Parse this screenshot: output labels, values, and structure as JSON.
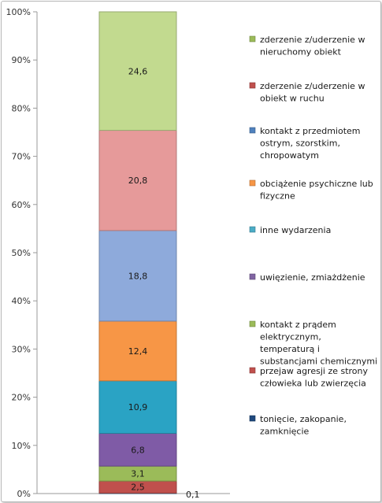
{
  "chart_data": {
    "type": "bar",
    "stacked": true,
    "percent_axis": true,
    "ylim": [
      0,
      100
    ],
    "yticks": [
      "0%",
      "10%",
      "20%",
      "30%",
      "40%",
      "50%",
      "60%",
      "70%",
      "80%",
      "90%",
      "100%"
    ],
    "grid": false,
    "legend_position": "right",
    "series": [
      {
        "name": "tonięcie, zakopanie, zamknięcie",
        "value": 0.1,
        "label": "0,1",
        "color": "#1f5f8b"
      },
      {
        "name": "przejaw agresji ze strony człowieka lub zwierzęcia",
        "value": 2.5,
        "label": "2,5",
        "color": "#c0504d"
      },
      {
        "name": "kontakt z prądem elektrycznym, temperaturą i substancjami chemicznymi",
        "value": 3.1,
        "label": "3,1",
        "color": "#9bbb59"
      },
      {
        "name": "uwięzienie, zmiażdżenie",
        "value": 6.8,
        "label": "6,8",
        "color": "#7f5ba6"
      },
      {
        "name": "inne wydarzenia",
        "value": 10.9,
        "label": "10,9",
        "color": "#2aa3c4"
      },
      {
        "name": "obciążenie psychiczne lub fizyczne",
        "value": 12.4,
        "label": "12,4",
        "color": "#f79646"
      },
      {
        "name": "kontakt z przedmiotem ostrym, szorstkim, chropowatym",
        "value": 18.8,
        "label": "18,8",
        "color": "#8eaadb"
      },
      {
        "name": "zderzenie z/uderzenie w obiekt w ruchu",
        "value": 20.8,
        "label": "20,8",
        "color": "#e69a9a"
      },
      {
        "name": "zderzenie z/uderzenie w nieruchomy obiekt",
        "value": 24.6,
        "label": "24,6",
        "color": "#c2da8f"
      }
    ],
    "legend_order": [
      {
        "lines": [
          "zderzenie z/uderzenie w",
          "nieruchomy obiekt"
        ],
        "color": "#9bbb59"
      },
      {
        "lines": [
          "zderzenie z/uderzenie w",
          "obiekt w ruchu"
        ],
        "color": "#c0504d"
      },
      {
        "lines": [
          "kontakt z przedmiotem",
          "ostrym, szorstkim,",
          "chropowatym"
        ],
        "color": "#4f81bd"
      },
      {
        "lines": [
          "obciążenie psychiczne lub",
          "fizyczne"
        ],
        "color": "#f79646"
      },
      {
        "lines": [
          "inne wydarzenia"
        ],
        "color": "#4bacc6"
      },
      {
        "lines": [
          "uwięzienie, zmiażdżenie"
        ],
        "color": "#8064a2"
      },
      {
        "lines": [
          "kontakt z prądem",
          "elektrycznym,",
          "temperaturą i",
          "substancjami chemicznymi"
        ],
        "color": "#9bbb59"
      },
      {
        "lines": [
          "przejaw agresji ze strony",
          "człowieka lub zwierzęcia"
        ],
        "color": "#c0504d"
      },
      {
        "lines": [
          "tonięcie, zakopanie,",
          "zamknięcie"
        ],
        "color": "#1f497d"
      }
    ]
  }
}
